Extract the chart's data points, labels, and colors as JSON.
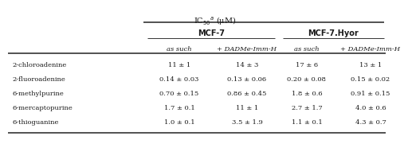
{
  "title": "IC$_{50}$$^{a}$ (μM)",
  "sub_headers": [
    "as such",
    "+ DADMe-Imm-H",
    "as such",
    "+ DADMe-Imm-H"
  ],
  "row_labels": [
    "2-chloroadenine",
    "2-fluoroadenine",
    "6-methylpurine",
    "6-mercaptopurine",
    "6-thioguanine"
  ],
  "data": [
    [
      "11 ± 1",
      "14 ± 3",
      "17 ± 6",
      "13 ± 1"
    ],
    [
      "0.14 ± 0.03",
      "0.13 ± 0.06",
      "0.20 ± 0.08",
      "0.15 ± 0.02"
    ],
    [
      "0.70 ± 0.15",
      "0.86 ± 0.45",
      "1.8 ± 0.6",
      "0.91 ± 0.15"
    ],
    [
      "1.7 ± 0.1",
      "11 ± 1",
      "2.7 ± 1.7",
      "4.0 ± 0.6"
    ],
    [
      "1.0 ± 0.1",
      "3.5 ± 1.9",
      "1.1 ± 0.1",
      "4.3 ± 0.7"
    ]
  ],
  "bg_color": "#ffffff",
  "text_color": "#1a1a1a",
  "line_color": "#333333",
  "fs_title": 7.0,
  "fs_group": 7.0,
  "fs_sub": 6.0,
  "fs_data": 6.0,
  "fs_row": 6.0
}
